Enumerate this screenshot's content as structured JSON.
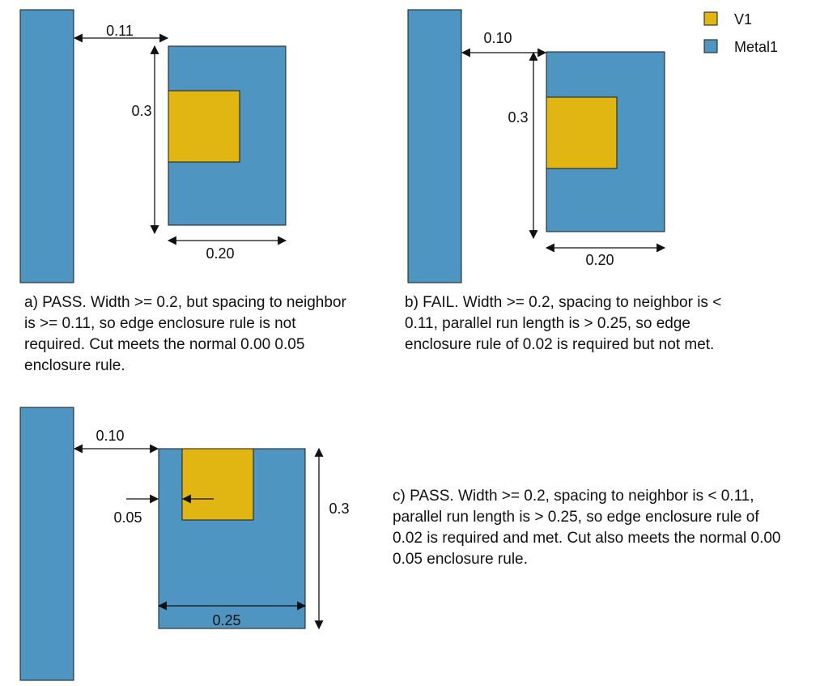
{
  "colors": {
    "metal1": "#4F95C2",
    "v1": "#E2B612",
    "stroke": "#1a1a1a"
  },
  "legend": {
    "v1_label": "V1",
    "metal1_label": "Metal1"
  },
  "panel_a": {
    "spacing_label": "0.11",
    "height_label": "0.3",
    "width_label": "0.20",
    "caption": "a) PASS. Width >= 0.2, but spacing to neighbor is >= 0.11, so edge enclosure rule is not required. Cut meets the normal 0.00 0.05 enclosure rule."
  },
  "panel_b": {
    "spacing_label": "0.10",
    "height_label": "0.3",
    "width_label": "0.20",
    "caption": "b) FAIL. Width >= 0.2, spacing to neighbor is < 0.11, parallel run length is > 0.25, so edge enclosure rule of 0.02 is required but not met."
  },
  "panel_c": {
    "spacing_label": "0.10",
    "enclosure_label": "0.05",
    "height_label": "0.3",
    "width_label": "0.25",
    "caption": "c) PASS. Width >= 0.2, spacing to neighbor is < 0.11, parallel run length is > 0.25, so edge enclosure rule of 0.02 is required and met. Cut also meets the normal 0.00 0.05 enclosure rule."
  }
}
